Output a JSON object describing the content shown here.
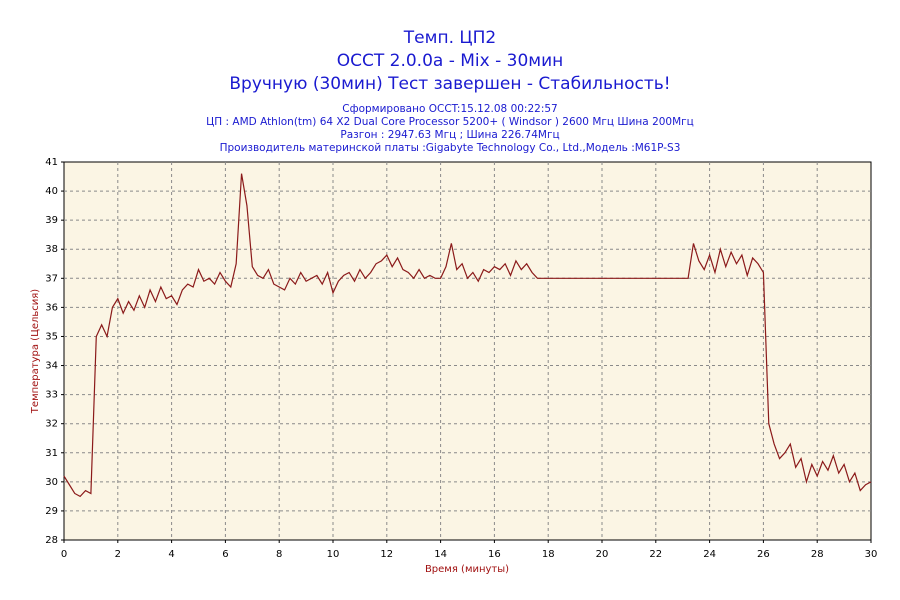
{
  "chart_data": {
    "type": "line",
    "title": "Темп. ЦП2",
    "subtitle": "OCCT 2.0.0a - Mix - 30мин",
    "subtitle2": "Вручную (30мин) Тест завершен - Стабильность!",
    "info": [
      "Сформировано OCCT:15.12.08 00:22:57",
      "ЦП : AMD Athlon(tm) 64 X2 Dual Core Processor 5200+ ( Windsor ) 2600 Мгц Шина 200Мгц",
      "Разгон : 2947.63 Мгц ; Шина 226.74Мгц",
      "Производитель материнской платы :Gigabyte Technology Co., Ltd.,Модель :M61P-S3"
    ],
    "x_label": "Время (минуты)",
    "y_label": "Температура (Цельсия)",
    "xlim": [
      0,
      30
    ],
    "xticks": [
      0,
      2,
      4,
      6,
      8,
      10,
      12,
      14,
      16,
      18,
      20,
      22,
      24,
      26,
      28,
      30
    ],
    "ylim": [
      28,
      41
    ],
    "yticks": [
      28,
      29,
      30,
      31,
      32,
      33,
      34,
      35,
      36,
      37,
      38,
      39,
      40,
      41
    ],
    "grid": true,
    "x": [
      0,
      0.2,
      0.4,
      0.6,
      0.8,
      1,
      1.2,
      1.4,
      1.6,
      1.8,
      2,
      2.2,
      2.4,
      2.6,
      2.8,
      3,
      3.2,
      3.4,
      3.6,
      3.8,
      4,
      4.2,
      4.4,
      4.6,
      4.8,
      5,
      5.2,
      5.4,
      5.6,
      5.8,
      6,
      6.2,
      6.4,
      6.6,
      6.8,
      7,
      7.2,
      7.4,
      7.6,
      7.8,
      8,
      8.2,
      8.4,
      8.6,
      8.8,
      9,
      9.2,
      9.4,
      9.6,
      9.8,
      10,
      10.2,
      10.4,
      10.6,
      10.8,
      11,
      11.2,
      11.4,
      11.6,
      11.8,
      12,
      12.2,
      12.4,
      12.6,
      12.8,
      13,
      13.2,
      13.4,
      13.6,
      13.8,
      14,
      14.2,
      14.4,
      14.6,
      14.8,
      15,
      15.2,
      15.4,
      15.6,
      15.8,
      16,
      16.2,
      16.4,
      16.6,
      16.8,
      17,
      17.2,
      17.4,
      17.6,
      17.8,
      18,
      18.2,
      18.4,
      18.6,
      18.8,
      19,
      19.2,
      19.4,
      19.6,
      19.8,
      20,
      20.2,
      20.4,
      20.6,
      20.8,
      21,
      21.2,
      21.4,
      21.6,
      21.8,
      22,
      22.2,
      22.4,
      22.6,
      22.8,
      23,
      23.2,
      23.4,
      23.6,
      23.8,
      24,
      24.2,
      24.4,
      24.6,
      24.8,
      25,
      25.2,
      25.4,
      25.6,
      25.8,
      26,
      26.2,
      26.4,
      26.6,
      26.8,
      27,
      27.2,
      27.4,
      27.6,
      27.8,
      28,
      28.2,
      28.4,
      28.6,
      28.8,
      29,
      29.2,
      29.4,
      29.6,
      29.8,
      30
    ],
    "series": [
      {
        "name": "Темп. ЦП2",
        "color": "#8b1a1a",
        "values": [
          30.2,
          29.9,
          29.6,
          29.5,
          29.7,
          29.6,
          35.0,
          35.4,
          35.0,
          36.0,
          36.3,
          35.8,
          36.2,
          35.9,
          36.4,
          36.0,
          36.6,
          36.2,
          36.7,
          36.3,
          36.4,
          36.1,
          36.6,
          36.8,
          36.7,
          37.3,
          36.9,
          37.0,
          36.8,
          37.2,
          36.9,
          36.7,
          37.5,
          40.6,
          39.5,
          37.4,
          37.1,
          37.0,
          37.3,
          36.8,
          36.7,
          36.6,
          37.0,
          36.8,
          37.2,
          36.9,
          37.0,
          37.1,
          36.8,
          37.2,
          36.5,
          36.9,
          37.1,
          37.2,
          36.9,
          37.3,
          37.0,
          37.2,
          37.5,
          37.6,
          37.8,
          37.4,
          37.7,
          37.3,
          37.2,
          37.0,
          37.3,
          37.0,
          37.1,
          37.0,
          37.0,
          37.4,
          38.2,
          37.3,
          37.5,
          37.0,
          37.2,
          36.9,
          37.3,
          37.2,
          37.4,
          37.3,
          37.5,
          37.1,
          37.6,
          37.3,
          37.5,
          37.2,
          37.0,
          37,
          37,
          37,
          37,
          37,
          37,
          37,
          37,
          37,
          37,
          37,
          37,
          37,
          37,
          37,
          37,
          37,
          37,
          37,
          37,
          37,
          37,
          37,
          37,
          37,
          37,
          37,
          37.0,
          38.2,
          37.6,
          37.3,
          37.8,
          37.2,
          38.0,
          37.4,
          37.9,
          37.5,
          37.8,
          37.1,
          37.7,
          37.5,
          37.2,
          32.0,
          31.3,
          30.8,
          31.0,
          31.3,
          30.5,
          30.8,
          30.0,
          30.6,
          30.2,
          30.7,
          30.4,
          30.9,
          30.3,
          30.6,
          30.0,
          30.3,
          29.7,
          29.9,
          30.0
        ]
      }
    ]
  }
}
